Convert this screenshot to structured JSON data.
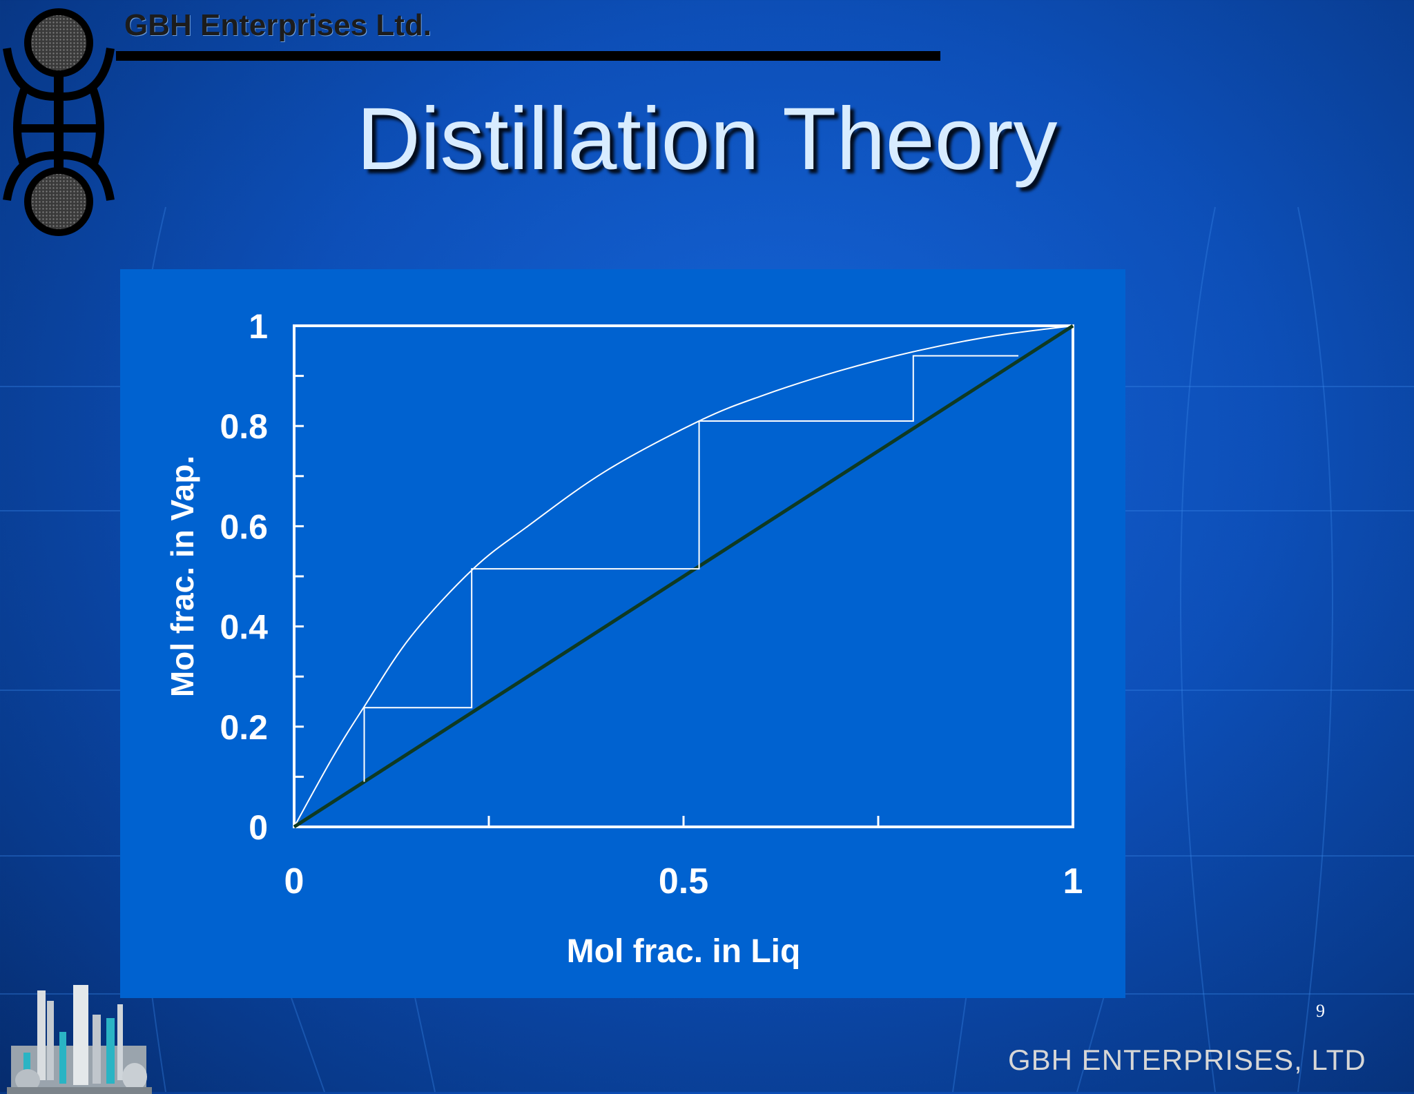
{
  "header": {
    "company": "GBH Enterprises Ltd."
  },
  "slide": {
    "title": "Distillation Theory",
    "page_number": "9"
  },
  "footer": {
    "brand": "GBH ENTERPRISES, LTD"
  },
  "icons": {
    "logo": "gbh-logo-icon",
    "refinery": "refinery-illustration-icon"
  },
  "colors": {
    "background": "#0d4fb8",
    "panel": "#0062d0",
    "diagonal": "#0f3a22",
    "curve": "#ffffff"
  },
  "chart_data": {
    "type": "line",
    "xlabel": "Mol frac. in Liq",
    "ylabel": "Mol frac. in Vap.",
    "xlim": [
      0,
      1
    ],
    "ylim": [
      0,
      1
    ],
    "x_ticks": [
      {
        "value": 0,
        "label": "0"
      },
      {
        "value": 0.5,
        "label": "0.5"
      },
      {
        "value": 1,
        "label": "1"
      }
    ],
    "y_ticks": [
      {
        "value": 0,
        "label": "0"
      },
      {
        "value": 0.2,
        "label": "0.2"
      },
      {
        "value": 0.4,
        "label": "0.4"
      },
      {
        "value": 0.6,
        "label": "0.6"
      },
      {
        "value": 0.8,
        "label": "0.8"
      },
      {
        "value": 1,
        "label": "1"
      }
    ],
    "x_minor_ticks": [
      0.25,
      0.5,
      0.75
    ],
    "y_minor_ticks": [
      0.1,
      0.3,
      0.5,
      0.7,
      0.9
    ],
    "series": [
      {
        "x": [
          0,
          0.05,
          0.09,
          0.15,
          0.23,
          0.3,
          0.4,
          0.52,
          0.6,
          0.7,
          0.8,
          0.9,
          1.0
        ],
        "y": [
          0,
          0.14,
          0.24,
          0.38,
          0.515,
          0.6,
          0.71,
          0.81,
          0.86,
          0.91,
          0.95,
          0.98,
          1.0
        ]
      },
      {
        "x": [
          0,
          1
        ],
        "y": [
          0,
          1
        ]
      },
      {
        "x": [
          0.09,
          0.09,
          0.228,
          0.228,
          0.52,
          0.52,
          0.795,
          0.795,
          0.93
        ],
        "y": [
          0.09,
          0.238,
          0.238,
          0.515,
          0.515,
          0.81,
          0.81,
          0.94,
          0.94
        ]
      }
    ]
  }
}
